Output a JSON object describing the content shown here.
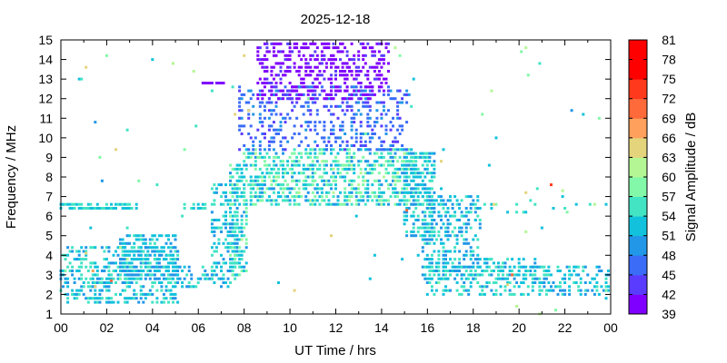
{
  "chart_data": {
    "type": "heatmap",
    "title": "2025-12-18",
    "xlabel": "UT Time / hrs",
    "ylabel": "Frequency / MHz",
    "colorbar_label": "Signal Amplitude / dB",
    "xlim": [
      0,
      24
    ],
    "ylim": [
      1,
      15
    ],
    "x_ticks": [
      "00",
      "02",
      "04",
      "06",
      "08",
      "10",
      "12",
      "14",
      "16",
      "18",
      "20",
      "22",
      "00"
    ],
    "y_ticks": [
      "1",
      "2",
      "3",
      "4",
      "5",
      "6",
      "7",
      "8",
      "9",
      "10",
      "11",
      "12",
      "13",
      "14",
      "15"
    ],
    "colorbar_ticks": [
      "39",
      "42",
      "45",
      "48",
      "51",
      "54",
      "57",
      "60",
      "63",
      "66",
      "69",
      "72",
      "75",
      "78",
      "81"
    ],
    "colorbar_range": [
      39,
      81
    ],
    "colorbar_colors": [
      "#8000ff",
      "#5a3cff",
      "#3a6cf8",
      "#2297e8",
      "#12c2dc",
      "#42e4c4",
      "#82f8a8",
      "#b4f694",
      "#e4d47c",
      "#ffa05c",
      "#ff6a3a",
      "#ff3a1c",
      "#ff0000",
      "#ff0000"
    ],
    "grid": false,
    "regions": [
      {
        "t0": 0.0,
        "t1": 3.4,
        "f0": 6.4,
        "f1": 6.8,
        "db": [
          52,
          58
        ],
        "density": 0.75
      },
      {
        "t0": 0.0,
        "t1": 5.2,
        "f0": 1.6,
        "f1": 4.6,
        "db": [
          50,
          58
        ],
        "density": 0.45
      },
      {
        "t0": 2.6,
        "t1": 5.2,
        "f0": 3.0,
        "f1": 5.2,
        "db": [
          50,
          56
        ],
        "density": 0.55
      },
      {
        "t0": 5.2,
        "t1": 7.4,
        "f0": 2.4,
        "f1": 3.6,
        "db": [
          50,
          58
        ],
        "density": 0.35
      },
      {
        "t0": 5.4,
        "t1": 6.4,
        "f0": 6.4,
        "f1": 6.8,
        "db": [
          52,
          58
        ],
        "density": 0.4
      },
      {
        "t0": 6.2,
        "t1": 7.2,
        "f0": 12.8,
        "f1": 13.0,
        "db": [
          39,
          42
        ],
        "density": 0.8
      },
      {
        "t0": 6.6,
        "t1": 7.8,
        "f0": 2.6,
        "f1": 7.8,
        "db": [
          50,
          58
        ],
        "density": 0.35
      },
      {
        "t0": 7.4,
        "t1": 8.2,
        "f0": 3.0,
        "f1": 8.8,
        "db": [
          50,
          60
        ],
        "density": 0.55
      },
      {
        "t0": 8.0,
        "t1": 15.6,
        "f0": 6.6,
        "f1": 9.6,
        "db": [
          50,
          62
        ],
        "density": 0.55
      },
      {
        "t0": 7.8,
        "t1": 15.2,
        "f0": 9.4,
        "f1": 12.8,
        "db": [
          44,
          50
        ],
        "density": 0.3
      },
      {
        "t0": 8.6,
        "t1": 14.4,
        "f0": 12.0,
        "f1": 15.0,
        "db": [
          39,
          43
        ],
        "density": 0.42
      },
      {
        "t0": 15.0,
        "t1": 16.4,
        "f0": 5.0,
        "f1": 9.4,
        "db": [
          50,
          58
        ],
        "density": 0.5
      },
      {
        "t0": 15.8,
        "t1": 18.4,
        "f0": 2.8,
        "f1": 7.2,
        "db": [
          49,
          57
        ],
        "density": 0.4
      },
      {
        "t0": 16.0,
        "t1": 24.0,
        "f0": 2.0,
        "f1": 3.6,
        "db": [
          50,
          58
        ],
        "density": 0.4
      },
      {
        "t0": 18.4,
        "t1": 20.8,
        "f0": 3.0,
        "f1": 4.0,
        "db": [
          50,
          58
        ],
        "density": 0.45
      },
      {
        "t0": 16.6,
        "t1": 24.0,
        "f0": 6.2,
        "f1": 6.8,
        "db": [
          52,
          60
        ],
        "density": 0.12
      },
      {
        "t0": 0.0,
        "t1": 24.0,
        "f0": 1.0,
        "f1": 15.0,
        "db": [
          50,
          66
        ],
        "density": 0.006
      }
    ],
    "hot_spots": [
      {
        "t": 1.4,
        "f": 3.2,
        "db": 70
      },
      {
        "t": 1.5,
        "f": 2.4,
        "db": 68
      },
      {
        "t": 2.2,
        "f": 2.7,
        "db": 72
      },
      {
        "t": 1.1,
        "f": 4.1,
        "db": 66
      },
      {
        "t": 15.1,
        "f": 6.3,
        "db": 72
      },
      {
        "t": 21.4,
        "f": 7.6,
        "db": 76
      },
      {
        "t": 19.7,
        "f": 3.0,
        "db": 74
      },
      {
        "t": 19.5,
        "f": 2.5,
        "db": 67
      },
      {
        "t": 21.9,
        "f": 7.3,
        "db": 63
      },
      {
        "t": 20.3,
        "f": 7.2,
        "db": 66
      },
      {
        "t": 18.9,
        "f": 6.6,
        "db": 68
      }
    ]
  }
}
